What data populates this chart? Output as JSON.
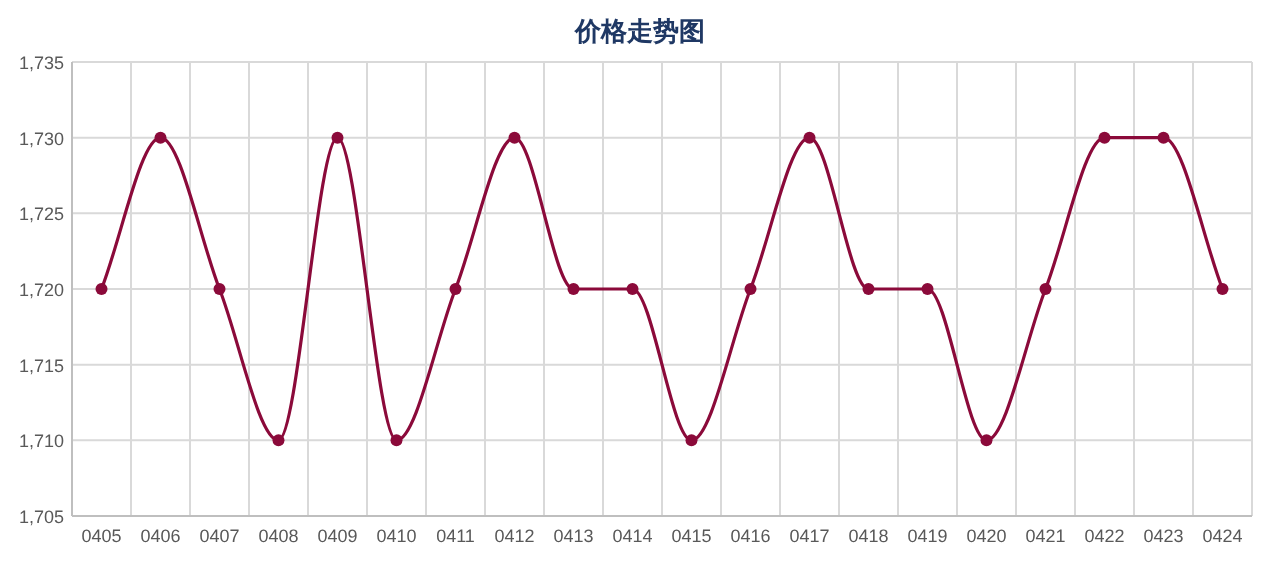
{
  "chart_data": {
    "type": "line",
    "title": "价格走势图",
    "categories": [
      "0405",
      "0406",
      "0407",
      "0408",
      "0409",
      "0410",
      "0411",
      "0412",
      "0413",
      "0414",
      "0415",
      "0416",
      "0417",
      "0418",
      "0419",
      "0420",
      "0421",
      "0422",
      "0423",
      "0424"
    ],
    "series": [
      {
        "color": "#8b0a3a",
        "values": [
          1720,
          1730,
          1720,
          1710,
          1730,
          1710,
          1720,
          1730,
          1720,
          1720,
          1710,
          1720,
          1730,
          1720,
          1720,
          1710,
          1720,
          1730,
          1730,
          1720
        ]
      }
    ],
    "ylim": [
      1705,
      1735
    ],
    "yticks": [
      {
        "value": 1705,
        "label": "1,705"
      },
      {
        "value": 1710,
        "label": "1,710"
      },
      {
        "value": 1715,
        "label": "1,715"
      },
      {
        "value": 1720,
        "label": "1,720"
      },
      {
        "value": 1725,
        "label": "1,725"
      },
      {
        "value": 1730,
        "label": "1,730"
      },
      {
        "value": 1735,
        "label": "1,735"
      }
    ],
    "grid": true,
    "marker": "circle",
    "line_style": "solid"
  }
}
